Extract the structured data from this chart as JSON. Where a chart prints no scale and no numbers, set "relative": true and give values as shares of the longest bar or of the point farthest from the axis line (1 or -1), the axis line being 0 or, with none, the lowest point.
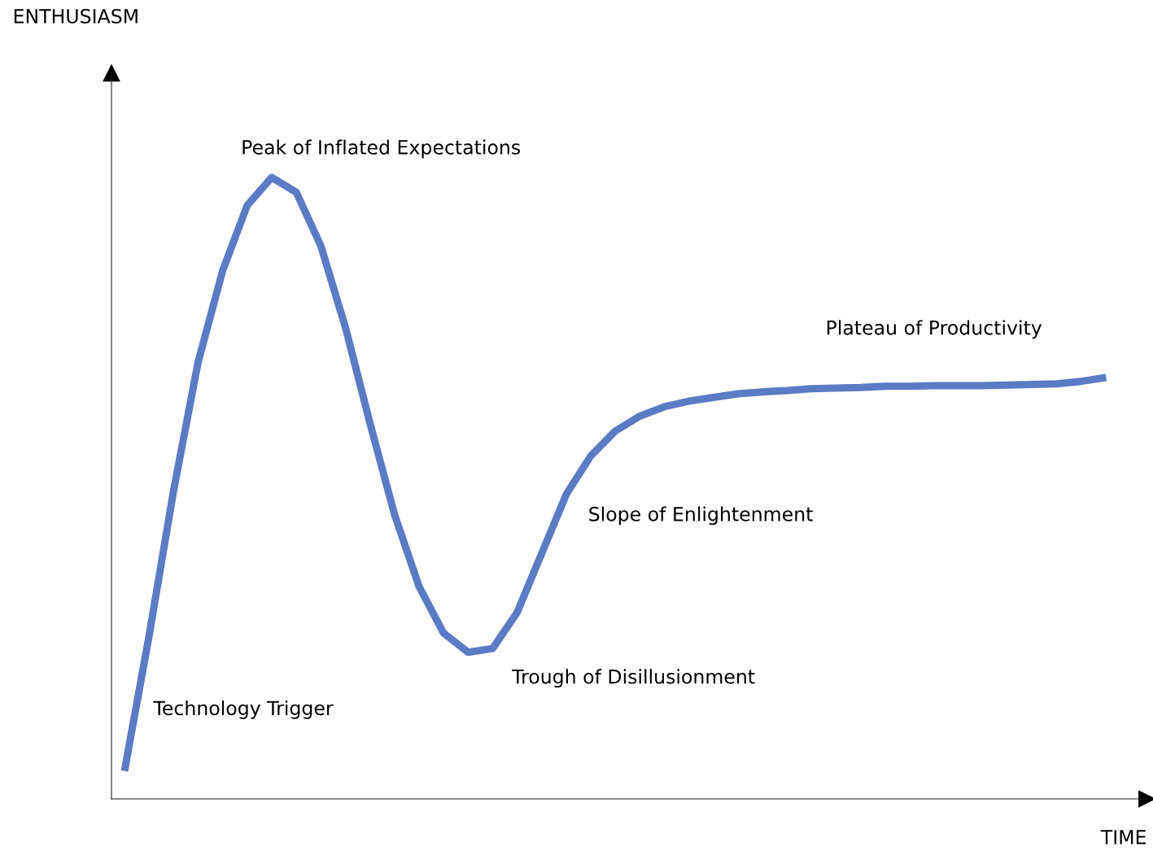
{
  "chart_data": {
    "type": "line",
    "relative": true,
    "xlabel": "TIME",
    "categories": [
      null,
      null,
      null,
      null,
      null,
      null,
      null,
      null,
      null,
      null,
      null,
      null,
      null,
      null,
      null,
      null,
      null,
      null,
      null,
      null,
      null,
      null,
      null,
      null,
      null,
      null,
      null,
      null,
      null,
      null,
      null,
      null,
      null,
      null,
      null,
      null,
      null,
      null,
      null,
      null,
      null
    ],
    "legend": false,
    "marker": "none",
    "line_style": "solid",
    "series": [
      {
        "color": "#5b7bc4",
        "values": [
          0.045,
          0.262,
          0.496,
          0.703,
          0.85,
          0.955,
          1.0,
          0.976,
          0.89,
          0.759,
          0.605,
          0.458,
          0.342,
          0.267,
          0.236,
          0.242,
          0.3,
          0.395,
          0.49,
          0.552,
          0.592,
          0.616,
          0.631,
          0.64,
          0.646,
          0.652,
          0.655,
          0.657,
          0.66,
          0.661,
          0.662,
          0.664,
          0.664,
          0.665,
          0.665,
          0.665,
          0.666,
          0.667,
          0.668,
          0.672,
          0.678
        ]
      }
    ],
    "annotations": [
      "ENTHUSIASM",
      "Peak of Inflated Expectations",
      "Plateau of Productivity",
      "Slope of Enlightenment",
      "Trough of Disillusionment",
      "Technology Trigger"
    ]
  }
}
